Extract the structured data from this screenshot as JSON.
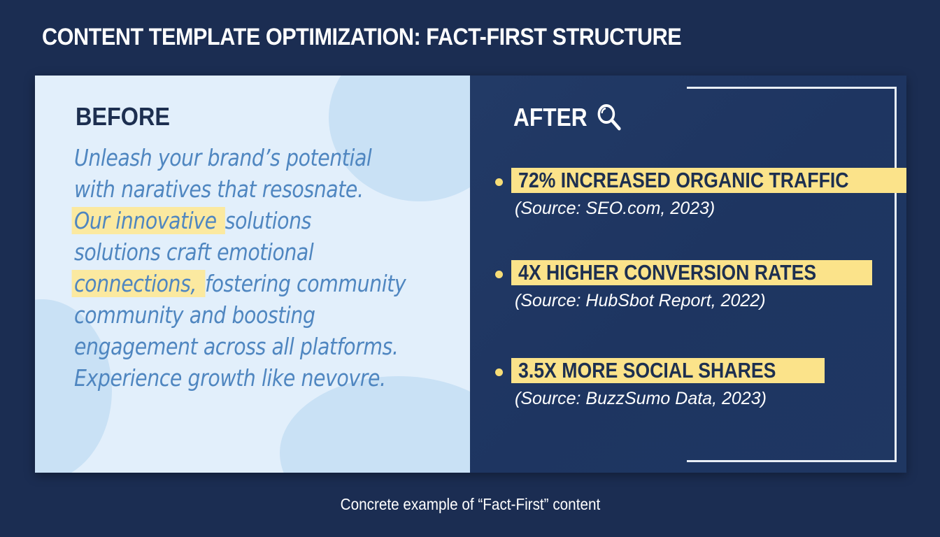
{
  "title": "CONTENT TEMPLATE OPTIMIZATION: FACT-FIRST STRUCTURE",
  "before": {
    "heading": "BEFORE",
    "lines": [
      [
        {
          "text": "Unleash your brand’s potential",
          "highlight": false
        }
      ],
      [
        {
          "text": "with naratives that resosnate.",
          "highlight": false
        }
      ],
      [
        {
          "text": "Our innovative ",
          "highlight": true
        },
        {
          "text": "solutions",
          "highlight": false
        }
      ],
      [
        {
          "text": "solutions craft emotional",
          "highlight": false
        }
      ],
      [
        {
          "text": "connections, ",
          "highlight": true
        },
        {
          "text": "fostering community",
          "highlight": false
        }
      ],
      [
        {
          "text": "community and boosting",
          "highlight": false
        }
      ],
      [
        {
          "text": "engagement across all platforms.",
          "highlight": false
        }
      ],
      [
        {
          "text": "Experience growth like nevovre.",
          "highlight": false
        }
      ]
    ]
  },
  "after": {
    "heading": "AFTER",
    "heading_icon": "magnifying-glass-icon",
    "items": [
      {
        "stat": "72% INCREASED ORGANIC TRAFFIC",
        "source": "(Source: SEO.com, 2023)"
      },
      {
        "stat": "4X HIGHER CONVERSION RATES",
        "source": "(Source: HubSbot Report, 2022)"
      },
      {
        "stat": "3.5X MORE SOCIAL SHARES",
        "source": "(Source: BuzzSumo Data, 2023)"
      }
    ]
  },
  "caption": "Concrete example of “Fact-First” content",
  "colors": {
    "background": "#1b2d52",
    "before_panel": "#e2effb",
    "after_panel": "#1f3762",
    "highlight": "#fbe38a",
    "before_text": "#4f86c0"
  }
}
